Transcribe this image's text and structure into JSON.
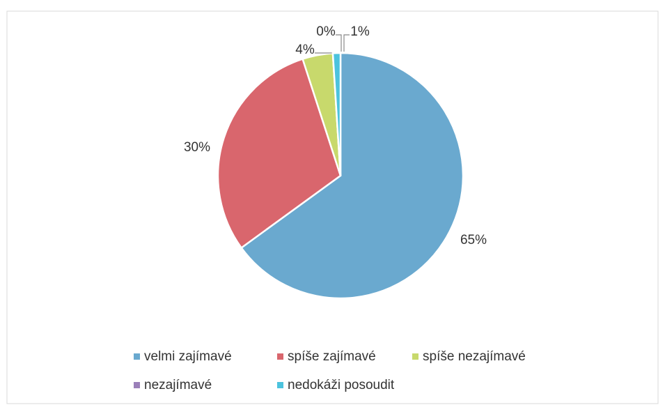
{
  "chart_data": {
    "type": "pie",
    "categories": [
      "velmi zajímavé",
      "spíše zajímavé",
      "spíše nezajímavé",
      "nezajímavé",
      "nedokáži posoudit"
    ],
    "values": [
      65,
      30,
      4,
      0,
      1
    ],
    "value_labels": [
      "65%",
      "30%",
      "4%",
      "0%",
      "1%"
    ],
    "colors": [
      "#6aa9cf",
      "#d9666d",
      "#c8d96c",
      "#9b80b9",
      "#4cc3de"
    ]
  }
}
